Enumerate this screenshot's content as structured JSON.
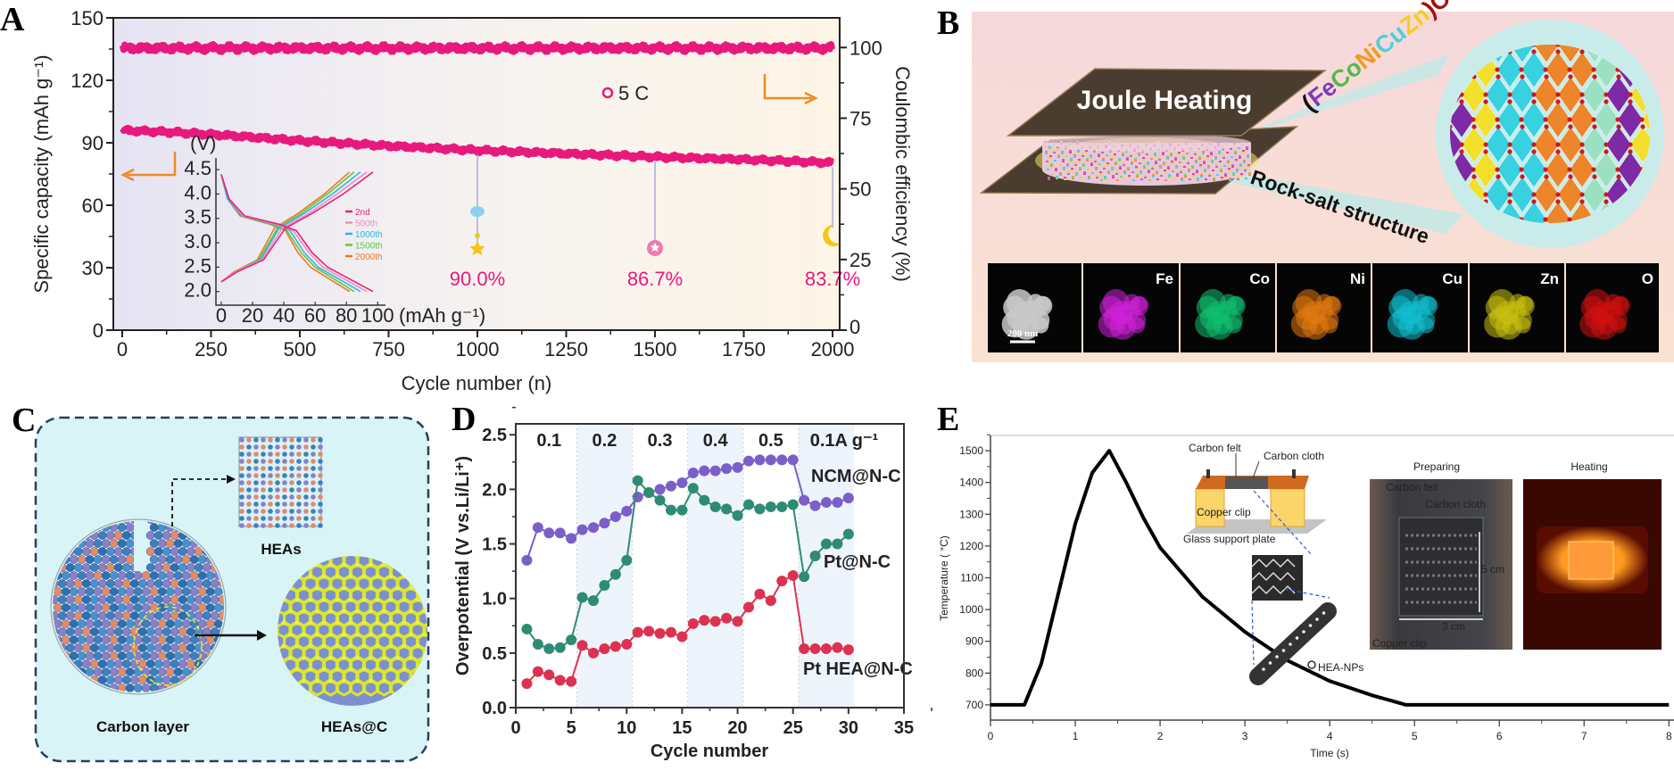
{
  "panels": {
    "a": "A",
    "b": "B",
    "c": "C",
    "d": "D",
    "e": "E"
  },
  "chart_data": [
    {
      "panel": "A",
      "type": "scatter",
      "xlabel": "Cycle number (n)",
      "ylabel": "Specific capacity (mAh g⁻¹)",
      "y2label": "Coulombic efficiency (%)",
      "xlim": [
        -25,
        2020
      ],
      "ylim": [
        0,
        150
      ],
      "y2lim": [
        0,
        110.5
      ],
      "xticks": [
        "0",
        "250",
        "500",
        "750",
        "1000",
        "1250",
        "1500",
        "1750",
        "2000"
      ],
      "yticks": [
        "0",
        "30",
        "60",
        "90",
        "120",
        "150"
      ],
      "y2ticks": [
        "25",
        "50",
        "75",
        "100"
      ],
      "legend": "5 C",
      "legend_placement": "top-center",
      "colors": {
        "data": "#e8197d",
        "arrow": "#f08a24",
        "drop_line": "#a9a9d9"
      },
      "series": [
        {
          "name": "5 C",
          "axis": "left",
          "points": [
            [
              1,
              96
            ],
            [
              150,
              95
            ],
            [
              300,
              93.5
            ],
            [
              500,
              91
            ],
            [
              750,
              88.5
            ],
            [
              1000,
              86.4
            ],
            [
              1250,
              84.8
            ],
            [
              1500,
              83.2
            ],
            [
              1750,
              82
            ],
            [
              2000,
              80.4
            ]
          ]
        },
        {
          "axis": "right",
          "points": [
            [
              1,
              99.8
            ],
            [
              2000,
              99.8
            ]
          ]
        }
      ],
      "annotations": [
        {
          "cycle": 1000,
          "text": "90.0%",
          "marker": "star",
          "color": "#f5c518"
        },
        {
          "cycle": 1500,
          "text": "86.7%",
          "marker": "circle-star",
          "color": "#f07ab0"
        },
        {
          "cycle": 2000,
          "text": "83.7%",
          "marker": "crescent",
          "color": "#f5c518"
        }
      ],
      "inset": {
        "type": "line",
        "ylabel": "(V)",
        "xlabel": "(mAh g⁻¹)",
        "xlim": [
          -3.4,
          105
        ],
        "ylim": [
          1.72,
          4.74
        ],
        "xticks": [
          "0",
          "20",
          "40",
          "60",
          "80",
          "100"
        ],
        "yticks": [
          "2.0",
          "2.5",
          "3.0",
          "3.5",
          "4.0",
          "4.5"
        ],
        "legend_placement": "right",
        "discharge_voltage": [
          4.4,
          3.9,
          3.55,
          3.38,
          3.25,
          2.8,
          2.5,
          2.0
        ],
        "charge_voltage": [
          2.2,
          2.4,
          2.65,
          3.3,
          3.6,
          4.0,
          4.45
        ],
        "series": [
          {
            "name": "2nd",
            "color": "#e8207a",
            "discharge_capacity": [
              0,
              5,
              15,
              37,
              48,
              58,
              68,
              97
            ],
            "charge_capacity": [
              0,
              10,
              27,
              41,
              58,
              78,
              97
            ]
          },
          {
            "name": "500th",
            "color": "#f08cc0",
            "discharge_capacity": [
              0,
              5,
              14,
              35,
              46,
              56,
              65,
              93
            ],
            "charge_capacity": [
              0,
              9,
              26,
              39,
              56,
              74,
              93
            ]
          },
          {
            "name": "1000th",
            "color": "#2cb8e0",
            "discharge_capacity": [
              0,
              4,
              13,
              34,
              44,
              53,
              62,
              89
            ],
            "charge_capacity": [
              0,
              9,
              25,
              37,
              53,
              71,
              89
            ]
          },
          {
            "name": "1500th",
            "color": "#5cc840",
            "discharge_capacity": [
              0,
              4,
              13,
              32,
              42,
              51,
              60,
              85
            ],
            "charge_capacity": [
              0,
              9,
              24,
              36,
              51,
              68,
              85
            ]
          },
          {
            "name": "2000th",
            "color": "#f07820",
            "discharge_capacity": [
              0,
              4,
              12,
              31,
              41,
              49,
              57,
              82
            ],
            "charge_capacity": [
              0,
              8,
              23,
              34,
              49,
              66,
              82
            ]
          }
        ]
      }
    },
    {
      "panel": "D",
      "type": "line",
      "xlabel": "Cycle number",
      "ylabel": "Overpotential (V vs.Li/Li⁺)",
      "xlim": [
        0,
        35
      ],
      "ylim": [
        0,
        2.6
      ],
      "xticks": [
        "0",
        "5",
        "10",
        "15",
        "20",
        "25",
        "30",
        "35"
      ],
      "yticks": [
        "0.0",
        "0.5",
        "1.0",
        "1.5",
        "2.0",
        "2.5"
      ],
      "regions": [
        {
          "label": "0.1",
          "range": [
            0.5,
            5.5
          ],
          "shaded": false
        },
        {
          "label": "0.2",
          "range": [
            5.5,
            10.5
          ],
          "shaded": true
        },
        {
          "label": "0.3",
          "range": [
            10.5,
            15.5
          ],
          "shaded": false
        },
        {
          "label": "0.4",
          "range": [
            15.5,
            20.5
          ],
          "shaded": true
        },
        {
          "label": "0.5",
          "range": [
            20.5,
            25.5
          ],
          "shaded": false
        },
        {
          "label": "0.1A g⁻¹",
          "range": [
            25.5,
            30.5
          ],
          "shaded": true
        }
      ],
      "x": [
        1,
        2,
        3,
        4,
        5,
        6,
        7,
        8,
        9,
        10,
        11,
        12,
        13,
        14,
        15,
        16,
        17,
        18,
        19,
        20,
        21,
        22,
        23,
        24,
        25,
        26,
        27,
        28,
        29,
        30
      ],
      "series": [
        {
          "name": "NCM@N-C",
          "color": "#7b5fc9",
          "values": [
            1.35,
            1.65,
            1.6,
            1.6,
            1.55,
            1.63,
            1.65,
            1.69,
            1.75,
            1.8,
            1.93,
            1.97,
            2.0,
            2.03,
            2.06,
            2.15,
            2.17,
            2.17,
            2.19,
            2.2,
            2.26,
            2.27,
            2.27,
            2.27,
            2.27,
            1.9,
            1.85,
            1.88,
            1.88,
            1.92
          ]
        },
        {
          "name": "Pt@N-C",
          "color": "#2e8b74",
          "values": [
            0.72,
            0.58,
            0.54,
            0.55,
            0.62,
            1.01,
            0.98,
            1.12,
            1.22,
            1.35,
            2.08,
            1.97,
            1.9,
            1.81,
            1.81,
            2.01,
            1.9,
            1.84,
            1.82,
            1.76,
            1.86,
            1.82,
            1.84,
            1.84,
            1.86,
            1.2,
            1.39,
            1.5,
            1.5,
            1.59
          ]
        },
        {
          "name": "Pt HEA@N-C",
          "color": "#dc3250",
          "values": [
            0.22,
            0.33,
            0.3,
            0.25,
            0.24,
            0.57,
            0.5,
            0.54,
            0.56,
            0.58,
            0.69,
            0.7,
            0.68,
            0.69,
            0.65,
            0.77,
            0.8,
            0.79,
            0.82,
            0.79,
            0.92,
            1.04,
            0.98,
            1.16,
            1.21,
            0.54,
            0.54,
            0.54,
            0.55,
            0.53
          ]
        }
      ]
    },
    {
      "panel": "E",
      "type": "line",
      "xlabel": "Time (s)",
      "ylabel": "Temperature ( °C)",
      "xlim": [
        0,
        8.06
      ],
      "ylim": [
        652,
        1548
      ],
      "xticks": [
        "0",
        "1",
        "2",
        "3",
        "4",
        "5",
        "6",
        "7",
        "8"
      ],
      "yticks": [
        "700",
        "800",
        "900",
        "1000",
        "1100",
        "1200",
        "1300",
        "1400",
        "1500"
      ],
      "color": "#000000",
      "points": [
        [
          0,
          700
        ],
        [
          0.4,
          700
        ],
        [
          0.6,
          830
        ],
        [
          0.8,
          1050
        ],
        [
          1.0,
          1270
        ],
        [
          1.2,
          1430
        ],
        [
          1.4,
          1500
        ],
        [
          1.6,
          1400
        ],
        [
          1.8,
          1290
        ],
        [
          2.0,
          1195
        ],
        [
          2.5,
          1040
        ],
        [
          3.0,
          930
        ],
        [
          3.5,
          840
        ],
        [
          4.0,
          775
        ],
        [
          4.5,
          730
        ],
        [
          4.9,
          700
        ],
        [
          8.0,
          700
        ]
      ]
    }
  ],
  "panel_b": {
    "joule_heating": "Joule Heating",
    "formula": [
      {
        "text": "(",
        "color": "#111111"
      },
      {
        "text": "Fe",
        "color": "#7a3db8"
      },
      {
        "text": "Co",
        "color": "#56b94a"
      },
      {
        "text": "Ni",
        "color": "#f29a1e"
      },
      {
        "text": "Cu",
        "color": "#4fd0d8"
      },
      {
        "text": "Zn",
        "color": "#f0d020"
      },
      {
        "text": ")O",
        "color": "#a01010"
      }
    ],
    "structure": "Rock-salt structure",
    "scale_bar": "200 nm",
    "maps": [
      {
        "label": "Fe",
        "color": "#d020d8"
      },
      {
        "label": "Co",
        "color": "#10c070"
      },
      {
        "label": "Ni",
        "color": "#e07810"
      },
      {
        "label": "Cu",
        "color": "#10c0d0"
      },
      {
        "label": "Zn",
        "color": "#c8c010"
      },
      {
        "label": "O",
        "color": "#d01010"
      }
    ]
  },
  "panel_c": {
    "heas": "HEAs",
    "carbon_layer": "Carbon layer",
    "heas_c": "HEAs@C"
  },
  "panel_e_inset": {
    "carbon_felt": "Carbon felt",
    "carbon_cloth": "Carbon cloth",
    "copper_clip": "Copper clip",
    "glass_plate": "Glass support plate",
    "hea_nps": "HEA-NPs",
    "preparing": "Preparing",
    "heating": "Heating",
    "photo_carbon_felt": "Carbon felt",
    "photo_carbon_cloth": "Carbon cloth",
    "photo_5cm": "5 cm",
    "photo_3cm": "3 cm",
    "photo_copper_clip": "Copper clip"
  }
}
